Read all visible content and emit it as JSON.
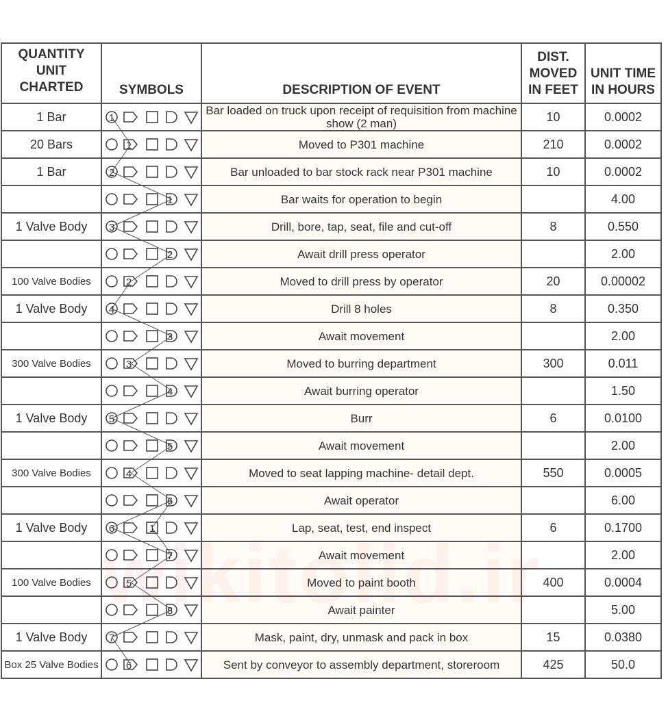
{
  "watermark": "wikitolid.ir",
  "headers": {
    "quantity": "QUANTITY UNIT CHARTED",
    "symbols": "SYMBOLS",
    "description": "DESCRIPTION OF EVENT",
    "distance": "DIST. MOVED IN FEET",
    "time": "UNIT TIME IN HOURS"
  },
  "symbol_types": [
    "operation-circle",
    "transport-arrow",
    "inspection-square",
    "delay-d",
    "storage-triangle"
  ],
  "rows": [
    {
      "qty": "1 Bar",
      "marks": [
        [
          0,
          "1"
        ]
      ],
      "desc": "Bar loaded on truck upon receipt of requisition from machine show (2 man)",
      "dist": "10",
      "time": "0.0002"
    },
    {
      "qty": "20 Bars",
      "marks": [
        [
          1,
          "1"
        ]
      ],
      "desc": "Moved to P301 machine",
      "dist": "210",
      "time": "0.0002"
    },
    {
      "qty": "1 Bar",
      "marks": [
        [
          0,
          "2"
        ]
      ],
      "desc": "Bar unloaded to bar stock rack near P301 machine",
      "dist": "10",
      "time": "0.0002"
    },
    {
      "qty": "",
      "marks": [
        [
          3,
          "1"
        ]
      ],
      "desc": "Bar waits for operation to begin",
      "dist": "",
      "time": "4.00"
    },
    {
      "qty": "1 Valve Body",
      "marks": [
        [
          0,
          "3"
        ]
      ],
      "desc": "Drill, bore, tap, seat, file and cut-off",
      "dist": "8",
      "time": "0.550"
    },
    {
      "qty": "",
      "marks": [
        [
          3,
          "2"
        ]
      ],
      "desc": "Await drill press operator",
      "dist": "",
      "time": "2.00"
    },
    {
      "qty": "100 Valve Bodies",
      "marks": [
        [
          1,
          "2"
        ]
      ],
      "desc": "Moved to drill press by operator",
      "dist": "20",
      "time": "0.00002"
    },
    {
      "qty": "1 Valve Body",
      "marks": [
        [
          0,
          "4"
        ]
      ],
      "desc": "Drill 8 holes",
      "dist": "8",
      "time": "0.350"
    },
    {
      "qty": "",
      "marks": [
        [
          3,
          "3"
        ]
      ],
      "desc": "Await movement",
      "dist": "",
      "time": "2.00"
    },
    {
      "qty": "300 Valve Bodies",
      "marks": [
        [
          1,
          "3"
        ]
      ],
      "desc": "Moved to burring department",
      "dist": "300",
      "time": "0.011"
    },
    {
      "qty": "",
      "marks": [
        [
          3,
          "4"
        ]
      ],
      "desc": "Await burring operator",
      "dist": "",
      "time": "1.50"
    },
    {
      "qty": "1 Valve Body",
      "marks": [
        [
          0,
          "5"
        ]
      ],
      "desc": "Burr",
      "dist": "6",
      "time": "0.0100"
    },
    {
      "qty": "",
      "marks": [
        [
          3,
          "5"
        ]
      ],
      "desc": "Await movement",
      "dist": "",
      "time": "2.00"
    },
    {
      "qty": "300 Valve Bodies",
      "marks": [
        [
          1,
          "4"
        ]
      ],
      "desc": "Moved to seat lapping machine- detail dept.",
      "dist": "550",
      "time": "0.0005"
    },
    {
      "qty": "",
      "marks": [
        [
          3,
          "6"
        ]
      ],
      "desc": "Await operator",
      "dist": "",
      "time": "6.00"
    },
    {
      "qty": "1 Valve Body",
      "marks": [
        [
          0,
          "6"
        ],
        [
          2,
          "1"
        ]
      ],
      "desc": "Lap, seat, test, end inspect",
      "dist": "6",
      "time": "0.1700"
    },
    {
      "qty": "",
      "marks": [
        [
          3,
          "7"
        ]
      ],
      "desc": "Await movement",
      "dist": "",
      "time": "2.00"
    },
    {
      "qty": "100 Valve Bodies",
      "marks": [
        [
          1,
          "5"
        ]
      ],
      "desc": "Moved to paint booth",
      "dist": "400",
      "time": "0.0004"
    },
    {
      "qty": "",
      "marks": [
        [
          3,
          "8"
        ]
      ],
      "desc": "Await painter",
      "dist": "",
      "time": "5.00"
    },
    {
      "qty": "1 Valve Body",
      "marks": [
        [
          0,
          "7"
        ]
      ],
      "desc": "Mask, paint, dry, unmask and pack in box",
      "dist": "15",
      "time": "0.0380"
    },
    {
      "qty": "Box 25 Valve Bodies",
      "marks": [
        [
          1,
          "6"
        ]
      ],
      "desc": "Sent by conveyor to assembly department, storeroom",
      "dist": "425",
      "time": "50.0"
    }
  ]
}
